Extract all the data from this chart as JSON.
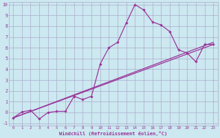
{
  "xlabel": "Windchill (Refroidissement éolien,°C)",
  "bg_color": "#cce8f0",
  "grid_color": "#aaaacc",
  "line_color": "#993399",
  "xlim": [
    -0.5,
    23.5
  ],
  "ylim": [
    -1.2,
    10.2
  ],
  "xticks": [
    0,
    1,
    2,
    3,
    4,
    5,
    6,
    7,
    8,
    9,
    10,
    11,
    12,
    13,
    14,
    15,
    16,
    17,
    18,
    19,
    20,
    21,
    22,
    23
  ],
  "yticks": [
    -1,
    0,
    1,
    2,
    3,
    4,
    5,
    6,
    7,
    8,
    9,
    10
  ],
  "line1_x": [
    0,
    1,
    2,
    3,
    4,
    5,
    6,
    7,
    8,
    9,
    10,
    11,
    12,
    13,
    14,
    15,
    16,
    17,
    18,
    19,
    20,
    21,
    22,
    23
  ],
  "line1_y": [
    -0.5,
    0.05,
    0.2,
    -0.6,
    0.0,
    0.1,
    0.1,
    1.5,
    1.2,
    1.5,
    4.5,
    6.0,
    6.5,
    8.3,
    10.0,
    9.5,
    8.4,
    8.1,
    7.5,
    5.8,
    5.5,
    4.7,
    6.3,
    6.3
  ],
  "line2_x": [
    0,
    23
  ],
  "line2_y": [
    -0.5,
    6.5
  ],
  "line3_x": [
    0,
    23
  ],
  "line3_y": [
    -0.5,
    6.3
  ]
}
